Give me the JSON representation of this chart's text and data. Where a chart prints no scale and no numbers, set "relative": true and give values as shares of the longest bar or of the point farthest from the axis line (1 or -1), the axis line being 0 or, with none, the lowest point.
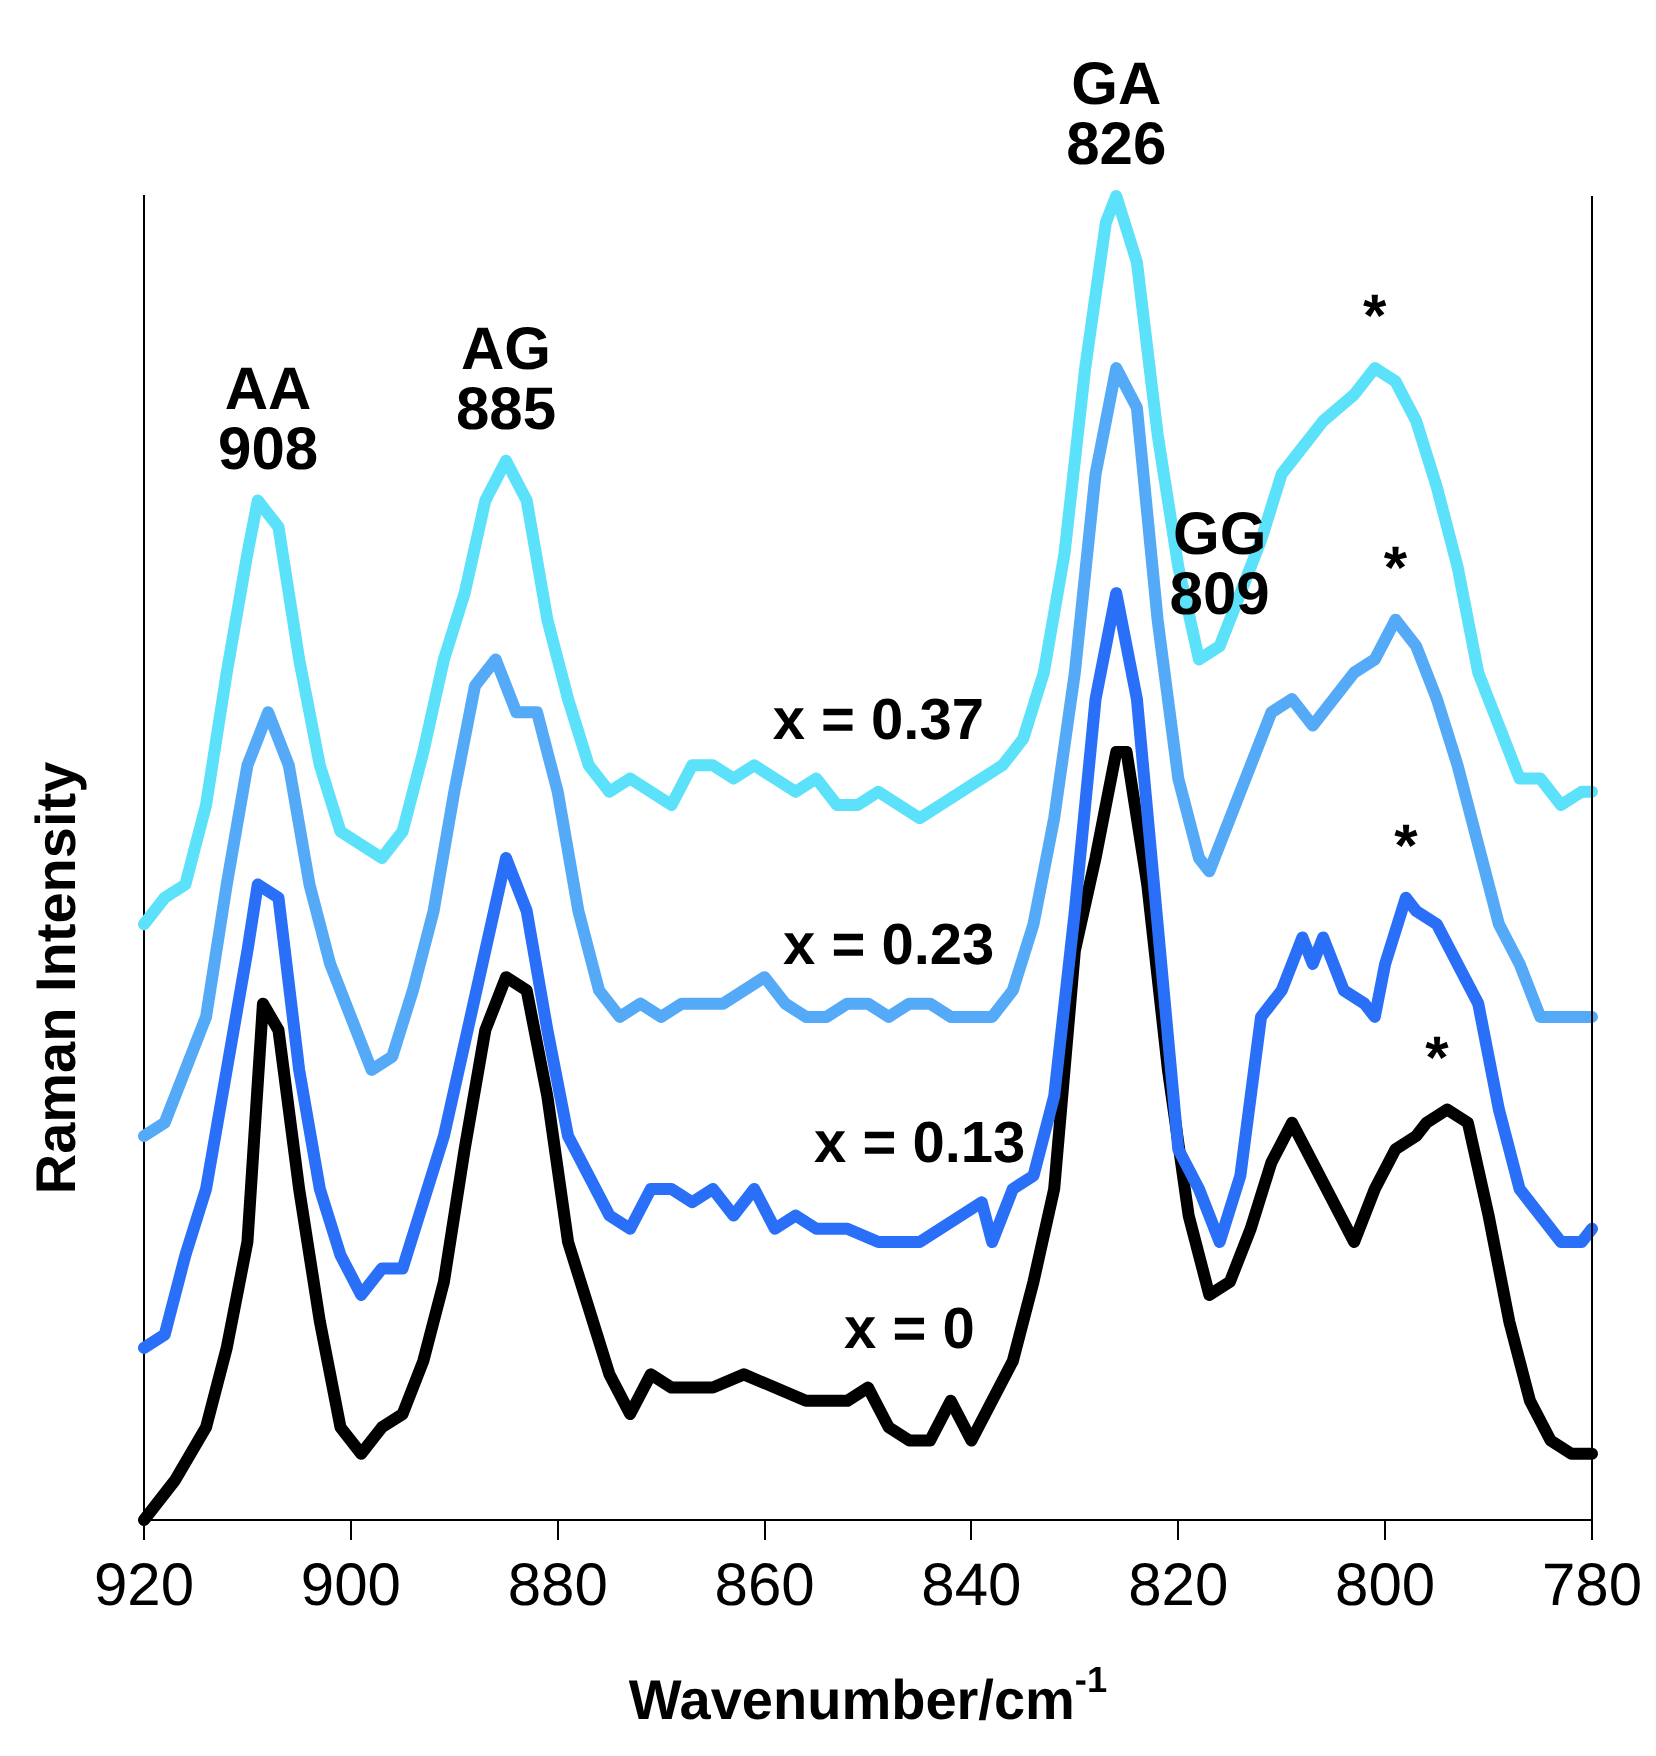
{
  "chart_data": {
    "type": "line",
    "relative": true,
    "xlabel": "Wavenumber/cm$^{-1}$",
    "ylabel": "Raman Intensity",
    "xlim": [
      920,
      780
    ],
    "xticks": [
      920,
      900,
      880,
      860,
      840,
      820,
      800,
      780
    ],
    "grid": false,
    "legend": false,
    "marker": "none",
    "line_style": "solid",
    "annotations": [
      {
        "text": "AA\n908",
        "x": 908,
        "y": 0.77
      },
      {
        "text": "AG\n885",
        "x": 885,
        "y": 0.8
      },
      {
        "text": "GA\n826",
        "x": 826,
        "y": 1
      },
      {
        "text": "GG\n809",
        "x": 816,
        "y": 0.66
      },
      {
        "text": "*",
        "x": 801,
        "y": 0.87
      },
      {
        "text": "*",
        "x": 799,
        "y": 0.68
      },
      {
        "text": "*",
        "x": 798,
        "y": 0.47
      },
      {
        "text": "*",
        "x": 795,
        "y": 0.31
      }
    ],
    "series": [
      {
        "name": "x = 0.37",
        "color": "#5ce1fa",
        "x": [
          920,
          918,
          916,
          914,
          912,
          910,
          909,
          907,
          905,
          903,
          901,
          899,
          897,
          895,
          893,
          891,
          889,
          887,
          885,
          883,
          881,
          879,
          877,
          875,
          873,
          871,
          869,
          867,
          865,
          863,
          861,
          859,
          857,
          855,
          853,
          851,
          849,
          847,
          845,
          843,
          841,
          839,
          837,
          835,
          833,
          831,
          829,
          827,
          826,
          824,
          822,
          820,
          818,
          816,
          814,
          812,
          810,
          808,
          806,
          803,
          801,
          799,
          797,
          795,
          793,
          791,
          789,
          787,
          785,
          783,
          781,
          780
        ],
        "values": [
          0.45,
          0.47,
          0.48,
          0.54,
          0.64,
          0.73,
          0.77,
          0.75,
          0.65,
          0.57,
          0.52,
          0.51,
          0.5,
          0.52,
          0.58,
          0.65,
          0.7,
          0.77,
          0.8,
          0.77,
          0.68,
          0.62,
          0.57,
          0.55,
          0.56,
          0.55,
          0.54,
          0.57,
          0.57,
          0.56,
          0.57,
          0.56,
          0.55,
          0.56,
          0.54,
          0.54,
          0.55,
          0.54,
          0.53,
          0.54,
          0.55,
          0.56,
          0.57,
          0.59,
          0.64,
          0.73,
          0.87,
          0.98,
          1,
          0.95,
          0.82,
          0.72,
          0.65,
          0.66,
          0.7,
          0.74,
          0.79,
          0.81,
          0.83,
          0.85,
          0.87,
          0.86,
          0.83,
          0.78,
          0.72,
          0.64,
          0.6,
          0.56,
          0.56,
          0.54,
          0.55,
          0.55
        ]
      },
      {
        "name": "x = 0.23",
        "color": "#55aaf8",
        "x": [
          920,
          918,
          916,
          914,
          912,
          910,
          908,
          906,
          904,
          902,
          900,
          898,
          896,
          894,
          892,
          890,
          888,
          886,
          884,
          882,
          880,
          878,
          876,
          874,
          872,
          870,
          868,
          866,
          864,
          862,
          860,
          858,
          856,
          854,
          852,
          850,
          848,
          846,
          844,
          842,
          840,
          838,
          836,
          834,
          832,
          830,
          828,
          826,
          824,
          822,
          820,
          818,
          817,
          815,
          813,
          811,
          809,
          807,
          805,
          803,
          801,
          799,
          797,
          795,
          793,
          791,
          789,
          787,
          785,
          783,
          781,
          780
        ],
        "values": [
          0.29,
          0.3,
          0.34,
          0.38,
          0.48,
          0.57,
          0.61,
          0.57,
          0.48,
          0.42,
          0.38,
          0.34,
          0.35,
          0.4,
          0.46,
          0.55,
          0.63,
          0.65,
          0.61,
          0.61,
          0.55,
          0.46,
          0.4,
          0.38,
          0.39,
          0.38,
          0.39,
          0.39,
          0.39,
          0.4,
          0.41,
          0.39,
          0.38,
          0.38,
          0.39,
          0.39,
          0.38,
          0.39,
          0.39,
          0.38,
          0.38,
          0.38,
          0.4,
          0.45,
          0.53,
          0.64,
          0.79,
          0.87,
          0.84,
          0.68,
          0.56,
          0.5,
          0.49,
          0.53,
          0.57,
          0.61,
          0.62,
          0.6,
          0.62,
          0.64,
          0.65,
          0.68,
          0.66,
          0.62,
          0.57,
          0.51,
          0.45,
          0.42,
          0.38,
          0.38,
          0.38,
          0.38
        ]
      },
      {
        "name": "x = 0.13",
        "color": "#2a6ff8",
        "x": [
          920,
          918,
          916,
          914,
          912,
          910,
          909,
          907,
          905,
          903,
          901,
          899,
          897,
          895,
          893,
          891,
          889,
          887,
          885,
          883,
          881,
          879,
          877,
          875,
          873,
          871,
          869,
          867,
          865,
          863,
          861,
          859,
          857,
          855,
          852,
          849,
          847,
          845,
          843,
          841,
          839,
          838,
          836,
          834,
          832,
          830,
          828,
          826,
          824,
          822,
          820,
          818,
          816,
          814,
          812,
          810,
          808,
          807,
          806,
          804,
          802,
          801,
          800,
          798,
          797,
          795,
          793,
          791,
          789,
          787,
          785,
          783,
          781,
          780
        ],
        "values": [
          0.13,
          0.14,
          0.2,
          0.25,
          0.34,
          0.43,
          0.48,
          0.47,
          0.34,
          0.25,
          0.2,
          0.17,
          0.19,
          0.19,
          0.24,
          0.29,
          0.36,
          0.43,
          0.5,
          0.46,
          0.37,
          0.29,
          0.26,
          0.23,
          0.22,
          0.25,
          0.25,
          0.24,
          0.25,
          0.23,
          0.25,
          0.22,
          0.23,
          0.22,
          0.22,
          0.21,
          0.21,
          0.21,
          0.22,
          0.23,
          0.24,
          0.21,
          0.25,
          0.26,
          0.32,
          0.46,
          0.62,
          0.7,
          0.62,
          0.45,
          0.28,
          0.25,
          0.21,
          0.26,
          0.38,
          0.4,
          0.44,
          0.42,
          0.44,
          0.4,
          0.39,
          0.38,
          0.42,
          0.47,
          0.46,
          0.45,
          0.42,
          0.39,
          0.31,
          0.25,
          0.23,
          0.21,
          0.21,
          0.22
        ]
      },
      {
        "name": "x = 0",
        "color": "#000000",
        "x": [
          920,
          917,
          914,
          912,
          910,
          908.5,
          907,
          905,
          903,
          901,
          899,
          897,
          895,
          893,
          891,
          889,
          887,
          885,
          883,
          881,
          879,
          877,
          875,
          873,
          871,
          869,
          867,
          865,
          862,
          859,
          856,
          852,
          850,
          848,
          846,
          844,
          842,
          840,
          838,
          836,
          834,
          832,
          830,
          828,
          826,
          825,
          823,
          821,
          819,
          817,
          815,
          813,
          811,
          809,
          807,
          805,
          803,
          801,
          799,
          797,
          796,
          794,
          792,
          790,
          788,
          786,
          784,
          782,
          780
        ],
        "values": [
          0,
          0.03,
          0.07,
          0.13,
          0.21,
          0.39,
          0.37,
          0.25,
          0.15,
          0.07,
          0.05,
          0.07,
          0.08,
          0.12,
          0.18,
          0.28,
          0.37,
          0.41,
          0.4,
          0.32,
          0.21,
          0.16,
          0.11,
          0.08,
          0.11,
          0.1,
          0.1,
          0.1,
          0.11,
          0.1,
          0.09,
          0.09,
          0.1,
          0.07,
          0.06,
          0.06,
          0.09,
          0.06,
          0.09,
          0.12,
          0.18,
          0.25,
          0.43,
          0.5,
          0.58,
          0.58,
          0.48,
          0.34,
          0.23,
          0.17,
          0.18,
          0.22,
          0.27,
          0.3,
          0.27,
          0.24,
          0.21,
          0.25,
          0.28,
          0.29,
          0.3,
          0.31,
          0.3,
          0.23,
          0.15,
          0.09,
          0.06,
          0.05,
          0.05
        ]
      }
    ]
  }
}
